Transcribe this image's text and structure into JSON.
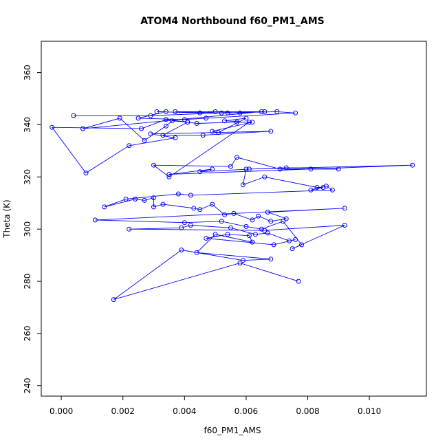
{
  "chart_data": {
    "type": "scatter",
    "title": "ATOM4 Northbound f60_PM1_AMS",
    "xlabel": "f60_PM1_AMS",
    "ylabel": "Theta (K)",
    "xlim": [
      -0.00065,
      0.01185
    ],
    "ylim": [
      236,
      372
    ],
    "xticks": [
      0,
      0.002,
      0.004,
      0.006,
      0.008,
      0.01
    ],
    "xtick_labels": [
      "0.000",
      "0.002",
      "0.004",
      "0.006",
      "0.008",
      "0.010"
    ],
    "yticks": [
      240,
      260,
      280,
      300,
      320,
      340,
      360
    ],
    "ytick_labels": [
      "240",
      "260",
      "280",
      "300",
      "320",
      "340",
      "360"
    ],
    "series_color": "#0000ff",
    "connect_points": true,
    "x": [
      0.0004,
      0.0029,
      0.0052,
      0.0066,
      0.0037,
      0.0054,
      0.007,
      0.0076,
      0.0047,
      0.004,
      0.0025,
      0.0034,
      0.0031,
      0.0045,
      0.005,
      0.0058,
      0.0065,
      0.0007,
      0.0019,
      0.0027,
      0.0034,
      0.0036,
      0.0041,
      0.0033,
      0.0046,
      0.0068,
      0.0029,
      0.0037,
      0.0022,
      0.0008,
      -0.0003,
      0.0026,
      0.0034,
      0.0041,
      0.0044,
      0.0057,
      0.0062,
      0.0049,
      0.0051,
      0.006,
      0.0053,
      0.0061,
      0.0035,
      0.003,
      0.0055,
      0.0057,
      0.0071,
      0.0081,
      0.009,
      0.0073,
      0.0061,
      0.0045,
      0.0049,
      0.0035,
      0.0114,
      0.006,
      0.0059,
      0.0066,
      0.0083,
      0.0085,
      0.0081,
      0.0086,
      0.0088,
      0.0042,
      0.0038,
      0.0021,
      0.0014,
      0.0024,
      0.0027,
      0.003,
      0.003,
      0.0033,
      0.0043,
      0.0045,
      0.0049,
      0.0053,
      0.0056,
      0.0062,
      0.0064,
      0.0068,
      0.0073,
      0.0067,
      0.0092,
      0.0011,
      0.004,
      0.0052,
      0.006,
      0.0065,
      0.0072,
      0.0078,
      0.0075,
      0.0092,
      0.0066,
      0.0022,
      0.0039,
      0.0042,
      0.0055,
      0.0063,
      0.0067,
      0.0074,
      0.0076,
      0.0069,
      0.0047,
      0.0054,
      0.0061,
      0.0062,
      0.005,
      0.0044,
      0.0068,
      0.0059,
      0.0039,
      0.0017,
      0.0058,
      0.0077
    ],
    "y": [
      343.5,
      343.5,
      344.5,
      345.0,
      345.0,
      344.5,
      345.0,
      344.5,
      342.5,
      342.0,
      342.5,
      345.0,
      345.0,
      344.5,
      345.0,
      344.5,
      345.0,
      338.5,
      342.5,
      334.0,
      339.5,
      341.5,
      341.0,
      336.0,
      336.0,
      337.5,
      336.5,
      335.0,
      332.0,
      321.5,
      339.0,
      338.5,
      342.0,
      341.0,
      340.5,
      341.0,
      341.0,
      337.5,
      337.0,
      342.5,
      341.5,
      341.0,
      320.0,
      324.5,
      324.0,
      327.5,
      323.0,
      323.0,
      323.0,
      323.5,
      323.0,
      322.0,
      323.0,
      321.0,
      324.5,
      323.0,
      317.0,
      320.0,
      316.0,
      316.0,
      315.0,
      316.5,
      315.0,
      313.0,
      313.5,
      311.5,
      308.5,
      311.5,
      311.0,
      312.0,
      308.5,
      309.5,
      308.0,
      307.5,
      309.5,
      305.5,
      306.0,
      303.5,
      305.0,
      303.0,
      304.0,
      306.5,
      308.0,
      303.5,
      302.5,
      303.0,
      301.0,
      300.0,
      303.0,
      294.0,
      292.5,
      301.5,
      299.5,
      300.0,
      300.5,
      301.5,
      300.5,
      298.0,
      298.5,
      295.5,
      296.0,
      294.0,
      296.5,
      298.0,
      297.5,
      295.0,
      298.0,
      291.0,
      288.5,
      288.0,
      292.0,
      273.0,
      287.0,
      280.0
    ]
  }
}
